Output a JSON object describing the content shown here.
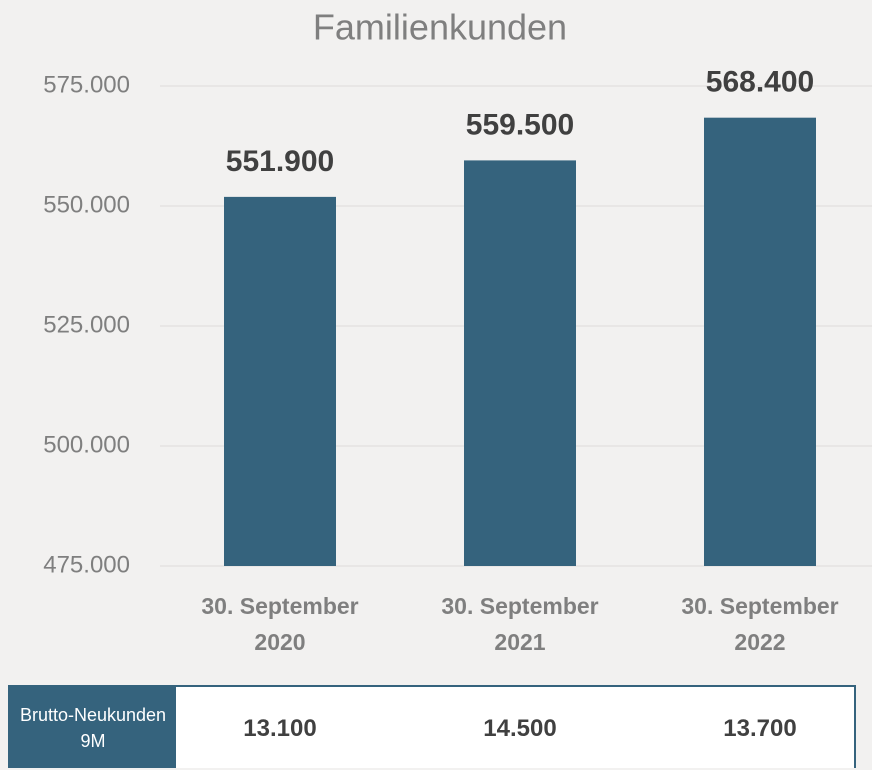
{
  "chart_data": {
    "type": "bar",
    "title": "Familienkunden",
    "categories": [
      "30. September 2020",
      "30. September 2021",
      "30. September 2022"
    ],
    "values": [
      551900,
      559500,
      568400
    ],
    "value_labels": [
      "551.900",
      "559.500",
      "568.400"
    ],
    "color": "#35637d",
    "ylim": [
      475000,
      575000
    ],
    "yticks": [
      {
        "value": 475000,
        "label": "475.000"
      },
      {
        "value": 500000,
        "label": "500.000"
      },
      {
        "value": 525000,
        "label": "525.000"
      },
      {
        "value": 550000,
        "label": "550.000"
      },
      {
        "value": 575000,
        "label": "575.000"
      }
    ],
    "grid": true
  },
  "table": {
    "header": "Brutto-Neukunden 9M",
    "values": [
      "13.100",
      "14.500",
      "13.700"
    ]
  }
}
